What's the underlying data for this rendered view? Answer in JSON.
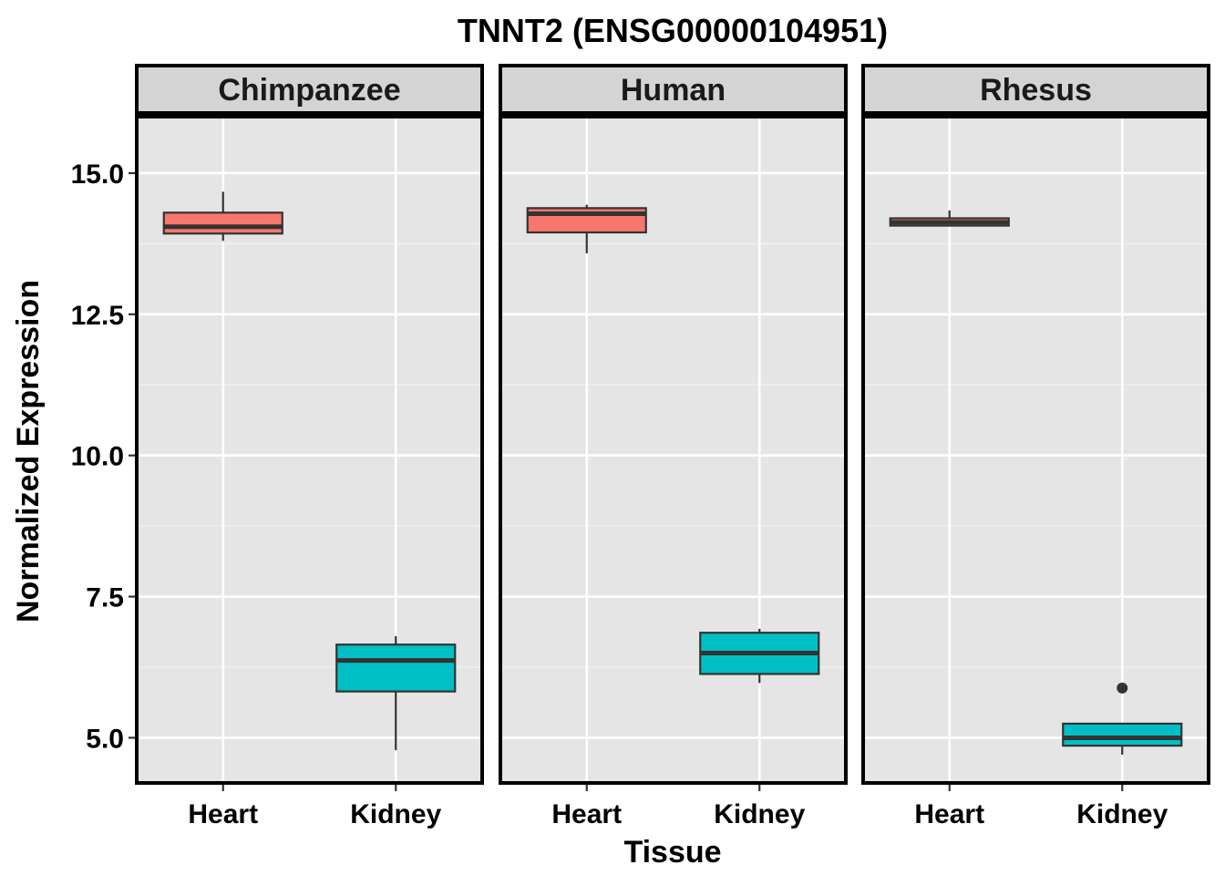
{
  "chart_data": {
    "type": "boxplot",
    "title": "TNNT2 (ENSG00000104951)",
    "xlabel": "Tissue",
    "ylabel": "Normalized Expression",
    "ylim": [
      4.2,
      16.0
    ],
    "yticks": [
      5.0,
      7.5,
      10.0,
      12.5,
      15.0
    ],
    "ytick_labels": [
      "5.0",
      "7.5",
      "10.0",
      "12.5",
      "15.0"
    ],
    "categories": [
      "Heart",
      "Kidney"
    ],
    "grid": true,
    "fill_colors": {
      "Heart": "#F8766D",
      "Kidney": "#00BFC4"
    },
    "panel_background": "#E5E5E5",
    "strip_background": "#D4D4D4",
    "panels": [
      {
        "name": "Chimpanzee",
        "boxes": [
          {
            "category": "Heart",
            "whisker_low": 13.8,
            "q1": 13.93,
            "median": 14.05,
            "q3": 14.3,
            "whisker_high": 14.67,
            "outliers": []
          },
          {
            "category": "Kidney",
            "whisker_low": 4.78,
            "q1": 5.82,
            "median": 6.37,
            "q3": 6.65,
            "whisker_high": 6.8,
            "outliers": []
          }
        ]
      },
      {
        "name": "Human",
        "boxes": [
          {
            "category": "Heart",
            "whisker_low": 13.58,
            "q1": 13.95,
            "median": 14.28,
            "q3": 14.38,
            "whisker_high": 14.44,
            "outliers": []
          },
          {
            "category": "Kidney",
            "whisker_low": 5.97,
            "q1": 6.13,
            "median": 6.5,
            "q3": 6.86,
            "whisker_high": 6.93,
            "outliers": []
          }
        ]
      },
      {
        "name": "Rhesus",
        "boxes": [
          {
            "category": "Heart",
            "whisker_low": 14.07,
            "q1": 14.07,
            "median": 14.13,
            "q3": 14.2,
            "whisker_high": 14.34,
            "outliers": []
          },
          {
            "category": "Kidney",
            "whisker_low": 4.7,
            "q1": 4.86,
            "median": 5.0,
            "q3": 5.25,
            "whisker_high": 5.25,
            "outliers": [
              5.88
            ]
          }
        ]
      }
    ]
  }
}
